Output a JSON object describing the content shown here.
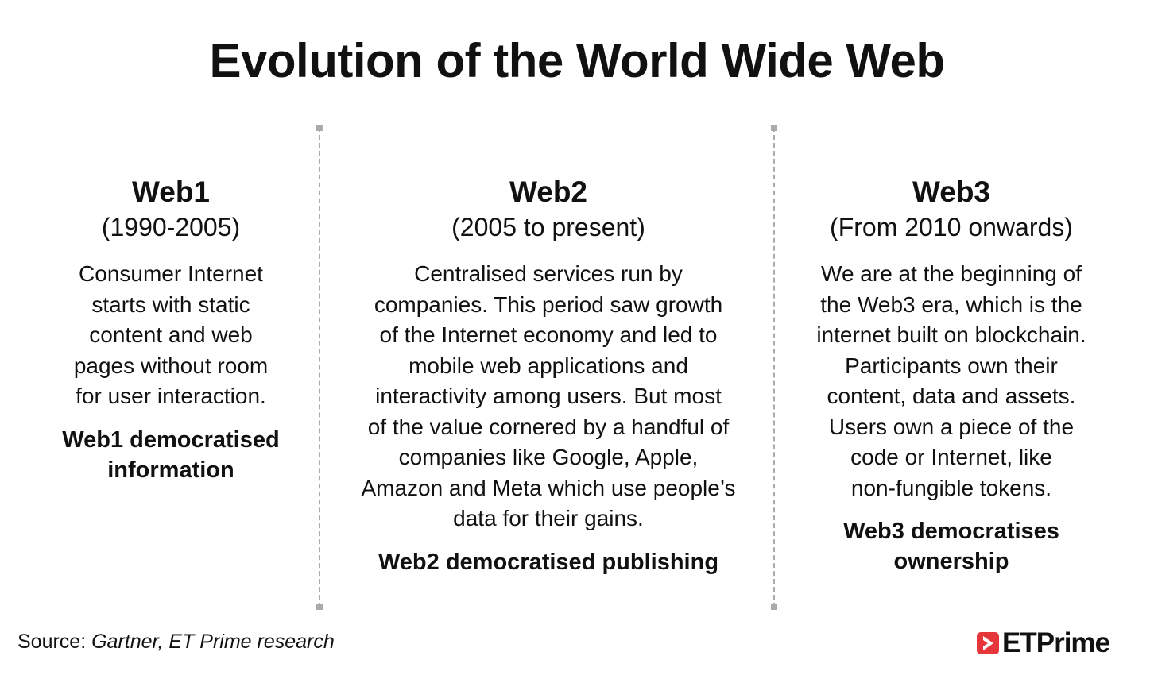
{
  "title": "Evolution of the World Wide Web",
  "columns": [
    {
      "name": "Web1",
      "period": "(1990-2005)",
      "lines": [
        "Consumer Internet",
        "starts with static",
        "content and web",
        "pages without room",
        "for user interaction."
      ],
      "tag_lines": [
        "Web1 democratised",
        "information"
      ]
    },
    {
      "name": "Web2",
      "period": "(2005 to present)",
      "lines": [
        "Centralised services run by",
        "companies. This period saw growth",
        "of the Internet economy and led to",
        "mobile web applications and",
        "interactivity among users. But most",
        "of the value cornered by a handful of",
        "companies like Google, Apple,",
        "Amazon and Meta which use people’s",
        "data for their gains."
      ],
      "tag_lines": [
        "Web2 democratised publishing"
      ]
    },
    {
      "name": "Web3",
      "period": "(From 2010 onwards)",
      "lines": [
        "We are at the beginning of",
        "the Web3 era, which is the",
        "internet built on blockchain.",
        "Participants own their",
        "content, data and assets.",
        "Users own a piece of the",
        "code or Internet, like",
        "non-fungible tokens."
      ],
      "tag_lines": [
        "Web3 democratises",
        "ownership"
      ]
    }
  ],
  "source": {
    "label": "Source: ",
    "value": "Gartner, ET Prime research"
  },
  "logo": {
    "text": "ETPrime",
    "color": "#e5373b",
    "icon": "play-icon"
  }
}
